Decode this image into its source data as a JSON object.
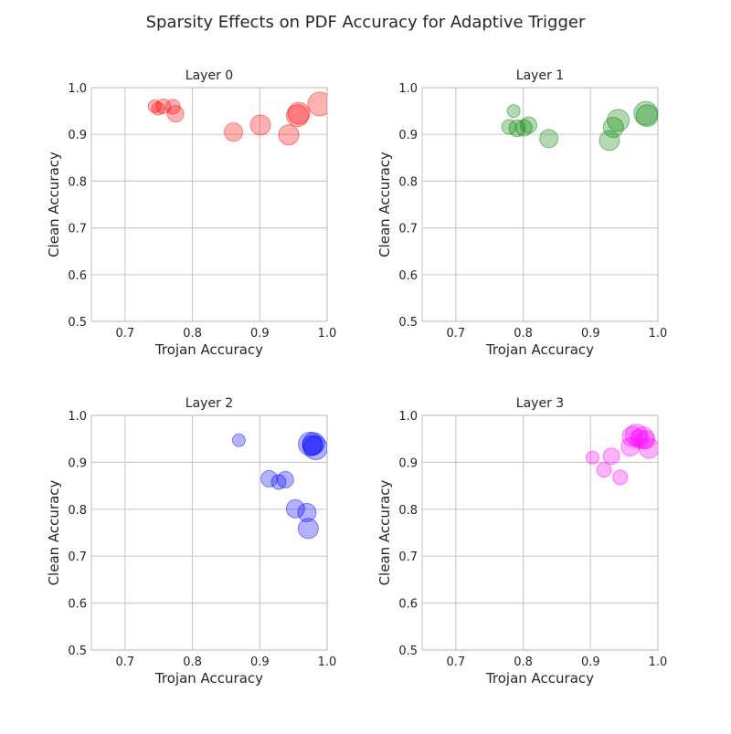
{
  "figure": {
    "title": "Sparsity Effects on PDF Accuracy for Adaptive Trigger"
  },
  "chart_data": [
    {
      "type": "scatter",
      "title": "Layer 0",
      "xlabel": "Trojan Accuracy",
      "ylabel": "Clean Accuracy",
      "xlim": [
        0.65,
        1.0
      ],
      "ylim": [
        0.5,
        1.0
      ],
      "xticks": [
        "0.7",
        "0.8",
        "0.9",
        "1.0"
      ],
      "yticks": [
        "0.5",
        "0.6",
        "0.7",
        "0.8",
        "0.9",
        "1.0"
      ],
      "grid": true,
      "color": "#ff0000",
      "points": [
        {
          "x": 0.744,
          "y": 0.96,
          "size": 7
        },
        {
          "x": 0.749,
          "y": 0.955,
          "size": 7
        },
        {
          "x": 0.757,
          "y": 0.96,
          "size": 8
        },
        {
          "x": 0.771,
          "y": 0.959,
          "size": 8
        },
        {
          "x": 0.775,
          "y": 0.944,
          "size": 9
        },
        {
          "x": 0.861,
          "y": 0.905,
          "size": 10
        },
        {
          "x": 0.901,
          "y": 0.92,
          "size": 11
        },
        {
          "x": 0.943,
          "y": 0.899,
          "size": 11
        },
        {
          "x": 0.956,
          "y": 0.94,
          "size": 12
        },
        {
          "x": 0.958,
          "y": 0.945,
          "size": 12
        },
        {
          "x": 0.989,
          "y": 0.965,
          "size": 13
        }
      ]
    },
    {
      "type": "scatter",
      "title": "Layer 1",
      "xlabel": "Trojan Accuracy",
      "ylabel": "Clean Accuracy",
      "xlim": [
        0.65,
        1.0
      ],
      "ylim": [
        0.5,
        1.0
      ],
      "xticks": [
        "0.7",
        "0.8",
        "0.9",
        "1.0"
      ],
      "yticks": [
        "0.5",
        "0.6",
        "0.7",
        "0.8",
        "0.9",
        "1.0"
      ],
      "grid": true,
      "color": "#008000",
      "points": [
        {
          "x": 0.786,
          "y": 0.95,
          "size": 7
        },
        {
          "x": 0.779,
          "y": 0.916,
          "size": 8
        },
        {
          "x": 0.791,
          "y": 0.913,
          "size": 9
        },
        {
          "x": 0.801,
          "y": 0.914,
          "size": 9
        },
        {
          "x": 0.808,
          "y": 0.92,
          "size": 9
        },
        {
          "x": 0.838,
          "y": 0.891,
          "size": 10
        },
        {
          "x": 0.928,
          "y": 0.887,
          "size": 11
        },
        {
          "x": 0.934,
          "y": 0.915,
          "size": 11
        },
        {
          "x": 0.941,
          "y": 0.93,
          "size": 12
        },
        {
          "x": 0.982,
          "y": 0.945,
          "size": 13
        },
        {
          "x": 0.984,
          "y": 0.94,
          "size": 12
        }
      ]
    },
    {
      "type": "scatter",
      "title": "Layer 2",
      "xlabel": "Trojan Accuracy",
      "ylabel": "Clean Accuracy",
      "xlim": [
        0.65,
        1.0
      ],
      "ylim": [
        0.5,
        1.0
      ],
      "xticks": [
        "0.7",
        "0.8",
        "0.9",
        "1.0"
      ],
      "yticks": [
        "0.5",
        "0.6",
        "0.7",
        "0.8",
        "0.9",
        "1.0"
      ],
      "grid": true,
      "color": "#0000ff",
      "points": [
        {
          "x": 0.869,
          "y": 0.947,
          "size": 7
        },
        {
          "x": 0.914,
          "y": 0.865,
          "size": 9
        },
        {
          "x": 0.928,
          "y": 0.858,
          "size": 8
        },
        {
          "x": 0.938,
          "y": 0.863,
          "size": 9
        },
        {
          "x": 0.953,
          "y": 0.801,
          "size": 10
        },
        {
          "x": 0.97,
          "y": 0.793,
          "size": 10
        },
        {
          "x": 0.972,
          "y": 0.759,
          "size": 11
        },
        {
          "x": 0.975,
          "y": 0.939,
          "size": 13
        },
        {
          "x": 0.978,
          "y": 0.936,
          "size": 11
        },
        {
          "x": 0.98,
          "y": 0.94,
          "size": 12
        },
        {
          "x": 0.983,
          "y": 0.931,
          "size": 13
        }
      ]
    },
    {
      "type": "scatter",
      "title": "Layer 3",
      "xlabel": "Trojan Accuracy",
      "ylabel": "Clean Accuracy",
      "xlim": [
        0.65,
        1.0
      ],
      "ylim": [
        0.5,
        1.0
      ],
      "xticks": [
        "0.7",
        "0.8",
        "0.9",
        "1.0"
      ],
      "yticks": [
        "0.5",
        "0.6",
        "0.7",
        "0.8",
        "0.9",
        "1.0"
      ],
      "grid": true,
      "color": "#ff00ff",
      "points": [
        {
          "x": 0.903,
          "y": 0.91,
          "size": 7
        },
        {
          "x": 0.92,
          "y": 0.884,
          "size": 8
        },
        {
          "x": 0.931,
          "y": 0.913,
          "size": 9
        },
        {
          "x": 0.944,
          "y": 0.868,
          "size": 8
        },
        {
          "x": 0.959,
          "y": 0.933,
          "size": 10
        },
        {
          "x": 0.962,
          "y": 0.955,
          "size": 11
        },
        {
          "x": 0.968,
          "y": 0.958,
          "size": 12
        },
        {
          "x": 0.972,
          "y": 0.95,
          "size": 10
        },
        {
          "x": 0.978,
          "y": 0.952,
          "size": 12
        },
        {
          "x": 0.982,
          "y": 0.948,
          "size": 10
        },
        {
          "x": 0.987,
          "y": 0.93,
          "size": 11
        }
      ]
    }
  ]
}
